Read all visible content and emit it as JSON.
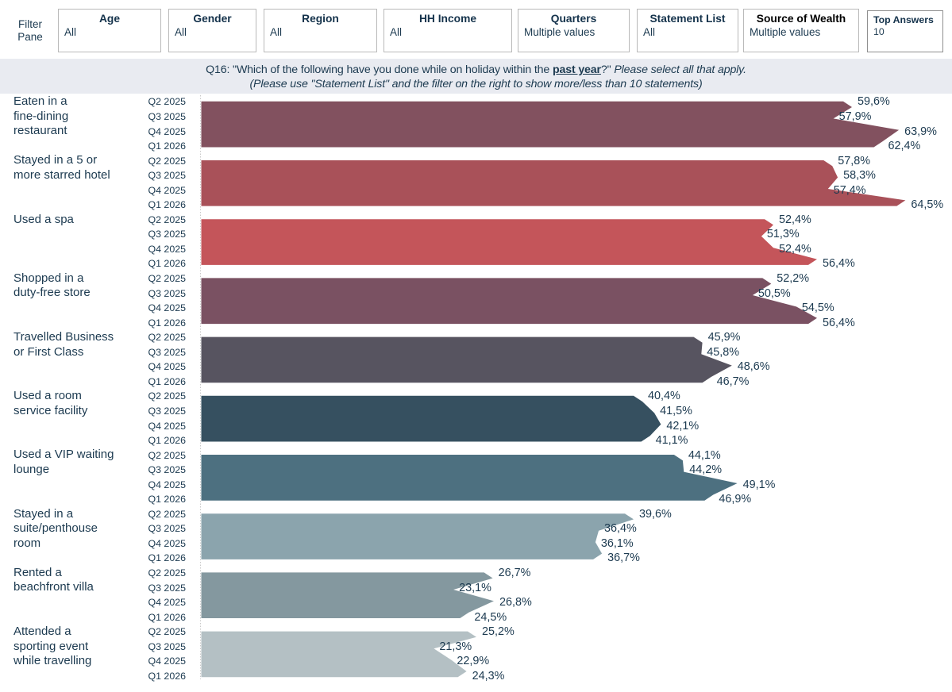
{
  "filter_pane": {
    "line1": "Filter",
    "line2": "Pane"
  },
  "filters": [
    {
      "label": "Age",
      "value": "All"
    },
    {
      "label": "Gender",
      "value": "All"
    },
    {
      "label": "Region",
      "value": "All"
    },
    {
      "label": "HH Income",
      "value": "All"
    },
    {
      "label": "Quarters",
      "value": "Multiple values"
    },
    {
      "label": "Statement List",
      "value": "All"
    },
    {
      "label": "Source of Wealth",
      "value": "Multiple values",
      "variant": "dark-header"
    },
    {
      "label": "Top Answers",
      "value": "10",
      "variant": "compact"
    }
  ],
  "title": {
    "line1_prefix": "Q16: \"Which of the following have you done while on holiday within the ",
    "line1_bold": "past year",
    "line1_mid": "?\" ",
    "line1_italic": "Please select all that apply.",
    "line2": "(Please use \"Statement List\" and the filter on the right to show more/less than 10 statements)"
  },
  "chart_data": {
    "type": "bar",
    "orientation": "horizontal",
    "value_axis_hidden": true,
    "xlim": [
      0,
      100
    ],
    "value_unit": "%",
    "decimal_separator": ",",
    "quarters": [
      "Q2 2025",
      "Q3 2025",
      "Q4 2025",
      "Q1 2026"
    ],
    "series": [
      {
        "category": "Eaten in a fine-dining restaurant",
        "label_lines": [
          "Eaten in a",
          "fine-dining",
          "restaurant"
        ],
        "color": "#82515f",
        "values": [
          59.6,
          57.9,
          63.9,
          62.4
        ]
      },
      {
        "category": "Stayed in a 5 or more starred hotel",
        "label_lines": [
          "Stayed in a 5 or",
          "more starred hotel"
        ],
        "color": "#a95159",
        "values": [
          57.8,
          58.3,
          57.4,
          64.5
        ]
      },
      {
        "category": "Used a spa",
        "label_lines": [
          "Used a spa"
        ],
        "color": "#c4555a",
        "values": [
          52.4,
          51.3,
          52.4,
          56.4
        ]
      },
      {
        "category": "Shopped in a duty-free store",
        "label_lines": [
          "Shopped in a",
          "duty-free store"
        ],
        "color": "#7a5162",
        "values": [
          52.2,
          50.5,
          54.5,
          56.4
        ]
      },
      {
        "category": "Travelled Business or First Class",
        "label_lines": [
          "Travelled Business",
          "or First Class"
        ],
        "color": "#575460",
        "values": [
          45.9,
          45.8,
          48.6,
          46.7
        ]
      },
      {
        "category": "Used a room service facility",
        "label_lines": [
          "Used a room",
          "service facility"
        ],
        "color": "#365060",
        "values": [
          40.4,
          41.5,
          42.1,
          41.1
        ]
      },
      {
        "category": "Used a VIP waiting lounge",
        "label_lines": [
          "Used a VIP waiting",
          "lounge"
        ],
        "color": "#4d7080",
        "values": [
          44.1,
          44.2,
          49.1,
          46.9
        ]
      },
      {
        "category": "Stayed in a suite/penthouse room",
        "label_lines": [
          "Stayed in a",
          "suite/penthouse",
          "room"
        ],
        "color": "#8ba4ad",
        "values": [
          39.6,
          36.4,
          36.1,
          36.7
        ]
      },
      {
        "category": "Rented a beachfront villa",
        "label_lines": [
          "Rented a",
          "beachfront villa"
        ],
        "color": "#84989f",
        "values": [
          26.7,
          23.1,
          26.8,
          24.5
        ]
      },
      {
        "category": "Attended a sporting event while travelling",
        "label_lines": [
          "Attended a",
          "sporting event",
          "while travelling"
        ],
        "color": "#b4c0c4",
        "values": [
          25.2,
          21.3,
          22.9,
          24.3
        ]
      }
    ]
  },
  "colors": {
    "text": "#1c3a50",
    "title_bar_bg": "#e9ebf1",
    "filter_box_border": "#b9b9b9",
    "axis_dotted_line": "#c9c9c9"
  }
}
